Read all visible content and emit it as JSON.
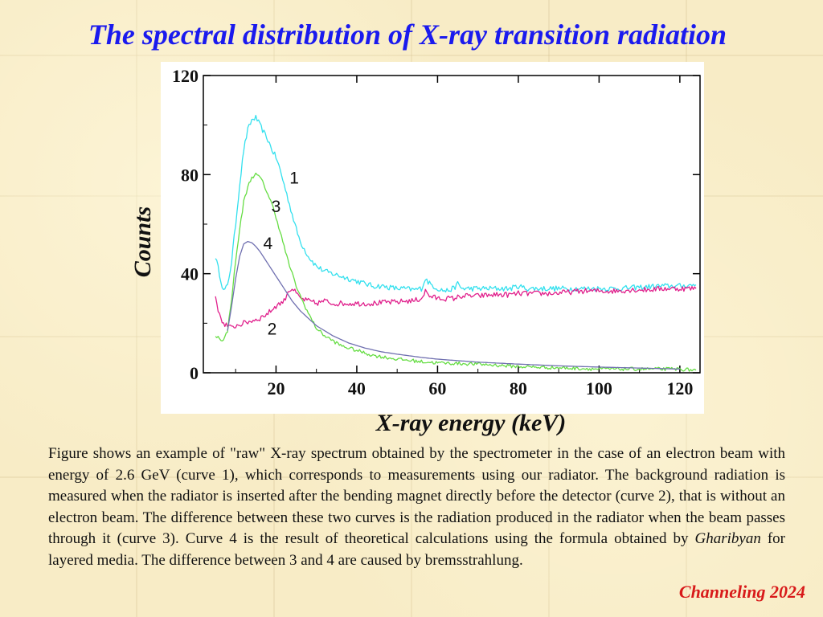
{
  "title": "The spectral distribution of X-ray transition radiation",
  "caption": {
    "part1": "Figure shows an example of \"raw\" X-ray spectrum obtained by the spectrometer in the case of an electron beam with energy of 2.6 GeV (curve 1), which corresponds to measurements using our radiator. The background radiation is measured when the radiator is inserted after the bending magnet directly before the detector (curve 2), that is without an electron beam. The difference between these two curves is the radiation produced in the radiator when the beam passes through it (curve 3). Curve 4 is the result of theoretical calculations using the formula obtained by ",
    "author": "Gharibyan",
    "part2": " for layered media. The difference between 3 and 4 are caused by bremsstrahlung."
  },
  "footer": "Channeling 2024",
  "chart_data": {
    "type": "line",
    "title": "",
    "xlabel": "X-ray energy (keV)",
    "ylabel": "Counts",
    "xlim": [
      2,
      125
    ],
    "ylim": [
      0,
      120
    ],
    "x_ticks": [
      20,
      40,
      60,
      80,
      100,
      120
    ],
    "y_ticks": [
      0,
      40,
      80,
      120
    ],
    "grid": false,
    "series": [
      {
        "name": "1",
        "color": "#33e0ee",
        "x": [
          5,
          7,
          8,
          9,
          10,
          11,
          12,
          13,
          14,
          15,
          16,
          17,
          18,
          19,
          20,
          21,
          22,
          23,
          24,
          25,
          26,
          28,
          30,
          32,
          34,
          36,
          38,
          40,
          42,
          44,
          46,
          48,
          50,
          52,
          54,
          56,
          57,
          58,
          60,
          62,
          64,
          65,
          66,
          70,
          74,
          78,
          80,
          82,
          86,
          90,
          95,
          100,
          105,
          110,
          115,
          120,
          124
        ],
        "y": [
          47,
          33,
          35,
          45,
          60,
          76,
          90,
          98,
          102,
          103,
          100,
          97,
          94,
          90,
          87,
          82,
          76,
          70,
          64,
          58,
          53,
          47,
          43,
          41,
          40,
          39,
          38,
          37,
          36,
          35,
          35,
          34.5,
          34,
          34,
          33.5,
          34,
          38,
          36,
          34,
          33,
          34,
          36,
          34,
          34,
          34,
          34,
          35,
          34,
          34,
          34,
          34,
          34,
          34,
          34.5,
          35,
          35,
          35.5
        ]
      },
      {
        "name": "2",
        "color": "#e0208c",
        "x": [
          5,
          6,
          7,
          8,
          9,
          10,
          12,
          14,
          16,
          18,
          20,
          22,
          23,
          24,
          25,
          26,
          28,
          30,
          32,
          34,
          36,
          40,
          44,
          48,
          50,
          52,
          54,
          56,
          57,
          58,
          60,
          64,
          66,
          70,
          74,
          78,
          80,
          84,
          88,
          92,
          96,
          100,
          104,
          108,
          112,
          116,
          120,
          124
        ],
        "y": [
          31,
          23,
          20,
          19,
          18,
          19,
          20,
          21,
          22,
          24,
          27,
          29,
          33,
          34,
          32,
          30,
          29,
          28,
          29,
          28,
          28,
          28,
          28,
          28.5,
          28.5,
          29,
          29,
          30,
          33,
          31,
          30,
          30,
          31,
          31,
          31.5,
          31.5,
          32,
          32,
          32,
          32.5,
          33,
          33,
          33,
          33.5,
          33.5,
          34,
          34,
          34
        ]
      },
      {
        "name": "3",
        "color": "#66dd44",
        "x": [
          5,
          7,
          8,
          9,
          10,
          11,
          12,
          13,
          14,
          15,
          16,
          17,
          18,
          19,
          20,
          21,
          22,
          23,
          24,
          25,
          26,
          28,
          30,
          32,
          34,
          36,
          40,
          44,
          50,
          56,
          60,
          70,
          80,
          90,
          100,
          110,
          120,
          124
        ],
        "y": [
          15,
          13,
          17,
          30,
          45,
          58,
          69,
          75,
          79,
          80,
          79,
          76,
          72,
          68,
          63,
          57,
          51,
          45,
          40,
          35,
          31,
          24,
          18,
          15,
          13,
          11,
          9,
          7,
          5.5,
          4.5,
          4,
          3.5,
          2.5,
          2,
          1.5,
          1.5,
          1.5,
          1
        ]
      },
      {
        "name": "4",
        "color": "#7070b0",
        "x": [
          8,
          9,
          10,
          11,
          12,
          13,
          14,
          15,
          16,
          18,
          20,
          22,
          24,
          26,
          28,
          30,
          34,
          38,
          42,
          46,
          50,
          56,
          60,
          70,
          80,
          90,
          100,
          110,
          120
        ],
        "y": [
          17,
          27,
          38,
          47,
          52,
          53,
          52.5,
          51,
          49,
          44,
          39,
          34,
          29,
          25,
          22,
          19,
          15,
          12,
          10,
          8.5,
          7.5,
          6.2,
          5.5,
          4.3,
          3.5,
          2.8,
          2.3,
          1.9,
          1.5
        ]
      }
    ],
    "annotations": [
      {
        "text": "1",
        "x": 24.5,
        "y": 79
      },
      {
        "text": "3",
        "x": 20,
        "y": 67.5
      },
      {
        "text": "4",
        "x": 18,
        "y": 52.5
      },
      {
        "text": "2",
        "x": 19,
        "y": 18
      }
    ]
  }
}
